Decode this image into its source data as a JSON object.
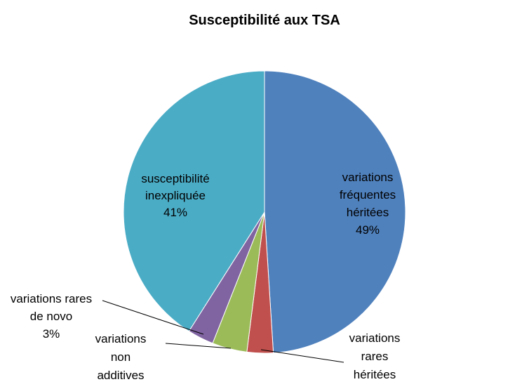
{
  "chart_data": {
    "type": "pie",
    "title": "Susceptibilité aux TSA",
    "start_angle_deg": 0,
    "direction": "clockwise",
    "slices": [
      {
        "key": "frequentes",
        "label_lines": [
          "variations",
          "fréquentes",
          "héritées",
          "49%"
        ],
        "value": 49,
        "color": "#4f81bd",
        "label_inside": true
      },
      {
        "key": "rares-heritees",
        "label_lines": [
          "variations",
          "rares",
          "héritées"
        ],
        "value": 3,
        "color": "#c0504d",
        "label_inside": false
      },
      {
        "key": "non-additives",
        "label_lines": [
          "variations",
          "non",
          "additives"
        ],
        "value": 4,
        "color": "#9bbb59",
        "label_inside": false
      },
      {
        "key": "de-novo",
        "label_lines": [
          "variations rares",
          "de novo",
          "3%"
        ],
        "value": 3,
        "color": "#8064a2",
        "label_inside": false
      },
      {
        "key": "inexpliquee",
        "label_lines": [
          "susceptibilité",
          "inexpliquée",
          "41%"
        ],
        "value": 41,
        "color": "#4bacc6",
        "label_inside": true
      }
    ],
    "legend": "none"
  }
}
